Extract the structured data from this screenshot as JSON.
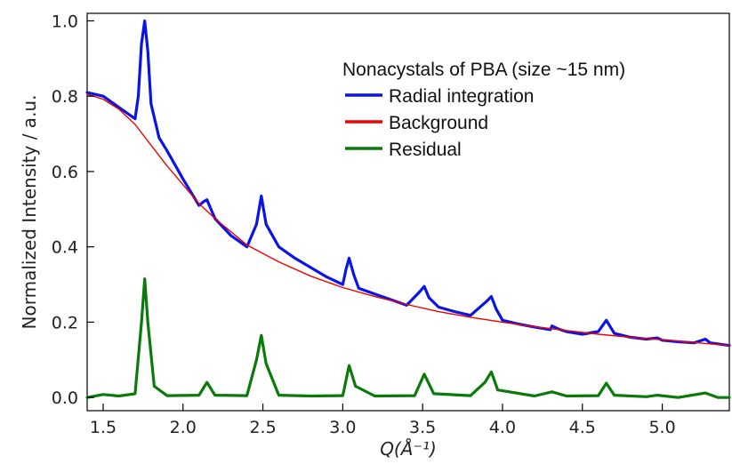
{
  "chart_data": {
    "type": "line",
    "title": "",
    "xlabel": "Q(Å⁻¹)",
    "ylabel": "Normalized Intensity / a.u.",
    "xlim": [
      1.4,
      5.42
    ],
    "ylim": [
      -0.035,
      1.02
    ],
    "x_ticks": [
      1.5,
      2.0,
      2.5,
      3.0,
      3.5,
      4.0,
      4.5,
      5.0
    ],
    "x_tick_labels": [
      "1.5",
      "2.0",
      "2.5",
      "3.0",
      "3.5",
      "4.0",
      "4.5",
      "5.0"
    ],
    "y_ticks": [
      0.0,
      0.2,
      0.4,
      0.6,
      0.8,
      1.0
    ],
    "y_tick_labels": [
      "0.0",
      "0.2",
      "0.4",
      "0.6",
      "0.8",
      "1.0"
    ],
    "grid": false,
    "legend": {
      "title": "Nonacystals of PBA (size ~15 nm)",
      "placement": "top-right"
    },
    "peaks": [
      {
        "q": 1.76,
        "residual": 0.315
      },
      {
        "q": 2.15,
        "residual": 0.04
      },
      {
        "q": 2.49,
        "residual": 0.165
      },
      {
        "q": 3.04,
        "residual": 0.085
      },
      {
        "q": 3.51,
        "residual": 0.062
      },
      {
        "q": 3.93,
        "residual": 0.068
      },
      {
        "q": 4.31,
        "residual": 0.015
      },
      {
        "q": 4.65,
        "residual": 0.038
      },
      {
        "q": 4.97,
        "residual": 0.006
      },
      {
        "q": 5.27,
        "residual": 0.012
      }
    ],
    "series": [
      {
        "name": "Radial integration",
        "color": "#0a14e6",
        "x": [
          1.4,
          1.5,
          1.6,
          1.7,
          1.72,
          1.74,
          1.76,
          1.78,
          1.8,
          1.85,
          1.9,
          2.0,
          2.1,
          2.13,
          2.15,
          2.17,
          2.2,
          2.3,
          2.4,
          2.46,
          2.49,
          2.52,
          2.6,
          2.7,
          2.8,
          2.9,
          3.0,
          3.02,
          3.04,
          3.07,
          3.1,
          3.2,
          3.3,
          3.4,
          3.48,
          3.51,
          3.54,
          3.6,
          3.7,
          3.8,
          3.9,
          3.93,
          3.96,
          4.0,
          4.1,
          4.2,
          4.3,
          4.31,
          4.35,
          4.4,
          4.5,
          4.6,
          4.65,
          4.7,
          4.8,
          4.9,
          4.97,
          5.0,
          5.1,
          5.2,
          5.27,
          5.3,
          5.42
        ],
        "y": [
          0.81,
          0.8,
          0.77,
          0.74,
          0.8,
          0.94,
          1.0,
          0.92,
          0.78,
          0.69,
          0.655,
          0.58,
          0.51,
          0.52,
          0.525,
          0.505,
          0.475,
          0.43,
          0.4,
          0.46,
          0.535,
          0.46,
          0.4,
          0.37,
          0.345,
          0.32,
          0.3,
          0.34,
          0.37,
          0.325,
          0.29,
          0.275,
          0.26,
          0.245,
          0.28,
          0.295,
          0.265,
          0.24,
          0.228,
          0.218,
          0.255,
          0.268,
          0.235,
          0.205,
          0.195,
          0.187,
          0.18,
          0.19,
          0.182,
          0.175,
          0.168,
          0.175,
          0.205,
          0.17,
          0.16,
          0.155,
          0.158,
          0.152,
          0.148,
          0.145,
          0.155,
          0.145,
          0.138
        ]
      },
      {
        "name": "Background",
        "color": "#f00000",
        "x": [
          1.4,
          1.5,
          1.6,
          1.7,
          1.8,
          1.9,
          2.0,
          2.1,
          2.2,
          2.4,
          2.6,
          2.8,
          3.0,
          3.2,
          3.4,
          3.6,
          3.8,
          4.0,
          4.2,
          4.4,
          4.6,
          4.8,
          5.0,
          5.2,
          5.42
        ],
        "y": [
          0.805,
          0.792,
          0.765,
          0.725,
          0.67,
          0.615,
          0.565,
          0.515,
          0.475,
          0.405,
          0.36,
          0.322,
          0.292,
          0.268,
          0.247,
          0.228,
          0.213,
          0.2,
          0.188,
          0.178,
          0.168,
          0.16,
          0.153,
          0.146,
          0.138
        ]
      },
      {
        "name": "Residual",
        "color": "#0a7a0a",
        "x": [
          1.4,
          1.5,
          1.6,
          1.7,
          1.74,
          1.76,
          1.78,
          1.82,
          1.9,
          2.1,
          2.15,
          2.2,
          2.4,
          2.46,
          2.49,
          2.52,
          2.6,
          2.8,
          3.0,
          3.04,
          3.08,
          3.2,
          3.45,
          3.51,
          3.57,
          3.8,
          3.89,
          3.93,
          3.97,
          4.2,
          4.31,
          4.4,
          4.6,
          4.65,
          4.7,
          4.9,
          4.97,
          5.1,
          5.27,
          5.35,
          5.42
        ],
        "y": [
          0.0,
          0.008,
          0.004,
          0.01,
          0.2,
          0.315,
          0.2,
          0.03,
          0.005,
          0.006,
          0.04,
          0.006,
          0.005,
          0.1,
          0.165,
          0.09,
          0.006,
          0.004,
          0.005,
          0.085,
          0.03,
          0.004,
          0.005,
          0.062,
          0.01,
          0.005,
          0.04,
          0.068,
          0.02,
          0.004,
          0.015,
          0.004,
          0.005,
          0.038,
          0.006,
          0.002,
          0.006,
          0.0,
          0.012,
          0.0,
          0.0
        ]
      }
    ]
  }
}
